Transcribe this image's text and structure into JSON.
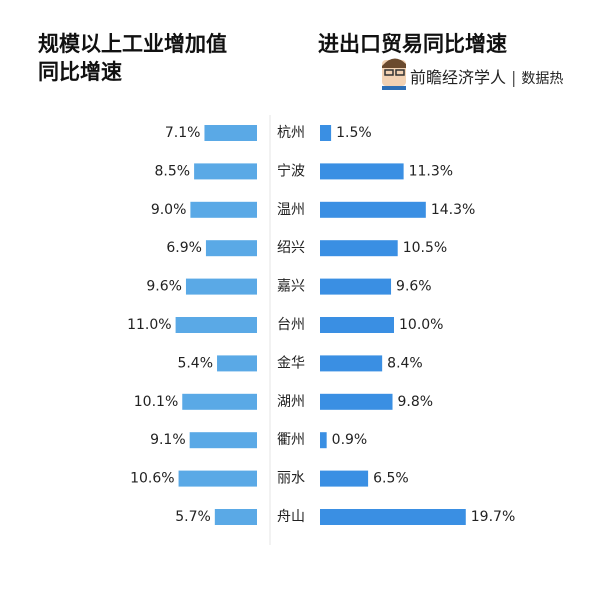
{
  "brand": "前瞻经济学人",
  "brand_tag": "数据热",
  "chart_data": [
    {
      "type": "bar",
      "orientation": "horizontal",
      "direction": "left",
      "title": "规模以上工业增加值同比增速",
      "categories": [
        "杭州",
        "宁波",
        "温州",
        "绍兴",
        "嘉兴",
        "台州",
        "金华",
        "湖州",
        "衢州",
        "丽水",
        "舟山"
      ],
      "values": [
        7.1,
        8.5,
        9.0,
        6.9,
        9.6,
        11.0,
        5.4,
        10.1,
        9.1,
        10.6,
        5.7
      ],
      "value_labels": [
        "7.1%",
        "8.5%",
        "9.0%",
        "6.9%",
        "9.6%",
        "11.0%",
        "5.4%",
        "10.1%",
        "9.1%",
        "10.6%",
        "5.7%"
      ],
      "color": "#5aa9e6"
    },
    {
      "type": "bar",
      "orientation": "horizontal",
      "direction": "right",
      "title": "进出口贸易同比增速",
      "values": [
        1.5,
        11.3,
        14.3,
        10.5,
        9.6,
        10.0,
        8.4,
        9.8,
        0.9,
        6.5,
        19.7
      ],
      "value_labels": [
        "1.5%",
        "11.3%",
        "14.3%",
        "10.5%",
        "9.6%",
        "10.0%",
        "8.4%",
        "9.8%",
        "0.9%",
        "6.5%",
        "19.7%"
      ],
      "color": "#3a8fe3"
    }
  ]
}
